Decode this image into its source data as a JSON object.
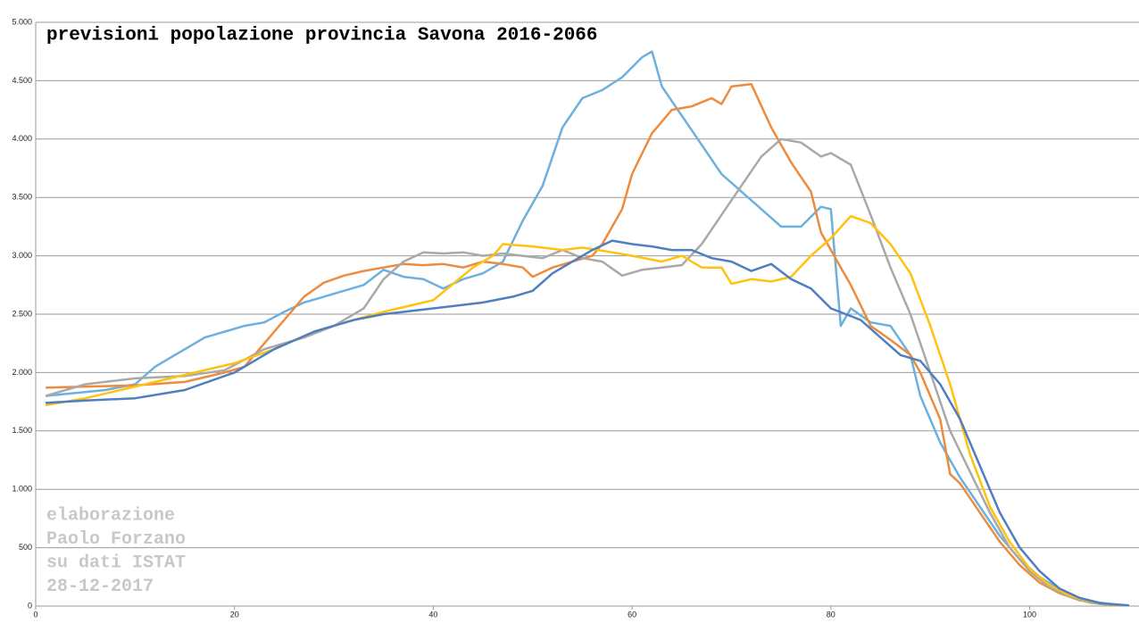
{
  "chart_data": {
    "type": "line",
    "title": "previsioni popolazione provincia Savona 2016-2066",
    "annotations": [
      "elaborazione",
      "Paolo Forzano",
      "su dati ISTAT",
      "28-12-2017"
    ],
    "xlim": [
      0,
      111
    ],
    "xticks": [
      0,
      20,
      40,
      60,
      80,
      100
    ],
    "ylim": [
      0,
      5000
    ],
    "yticks": [
      0,
      500,
      {
        "value": 1000,
        "label": "1.000"
      },
      {
        "value": 1500,
        "label": "1.500"
      },
      {
        "value": 2000,
        "label": "2.000"
      },
      {
        "value": 2500,
        "label": "2.500"
      },
      {
        "value": 3000,
        "label": "3.000"
      },
      {
        "value": 3500,
        "label": "3.500"
      },
      {
        "value": 4000,
        "label": "4.000"
      },
      {
        "value": 4500,
        "label": "4.500"
      },
      {
        "value": 5000,
        "label": "5.000"
      }
    ],
    "grid": true,
    "series": [
      {
        "color": "#6cb0de",
        "x": [
          1,
          7,
          10,
          12,
          14,
          17,
          19,
          21,
          23,
          25,
          27,
          29,
          31,
          33,
          35,
          37,
          39,
          41,
          43,
          45,
          47,
          49,
          51,
          53,
          55,
          57,
          59,
          61,
          62,
          63,
          65,
          67,
          69,
          71,
          73,
          75,
          77,
          79,
          80,
          81,
          82,
          84,
          86,
          88,
          89,
          91,
          93,
          95,
          97,
          99,
          101,
          103,
          105,
          107,
          109
        ],
        "values": [
          1800,
          1850,
          1900,
          2050,
          2150,
          2300,
          2350,
          2400,
          2430,
          2520,
          2600,
          2650,
          2700,
          2750,
          2880,
          2820,
          2800,
          2720,
          2800,
          2850,
          2950,
          3300,
          3600,
          4100,
          4350,
          4420,
          4530,
          4700,
          4750,
          4450,
          4200,
          3950,
          3700,
          3550,
          3400,
          3250,
          3250,
          3420,
          3400,
          2400,
          2550,
          2430,
          2400,
          2150,
          1800,
          1400,
          1100,
          850,
          600,
          400,
          250,
          140,
          70,
          30,
          10
        ]
      },
      {
        "color": "#ed8c3f",
        "x": [
          1,
          5,
          10,
          15,
          19,
          21,
          23,
          25,
          27,
          29,
          31,
          33,
          35,
          37,
          39,
          41,
          43,
          45,
          47,
          49,
          50,
          52,
          54,
          56,
          57,
          59,
          60,
          62,
          64,
          66,
          68,
          69,
          70,
          72,
          74,
          76,
          78,
          79,
          81,
          82,
          84,
          86,
          88,
          89,
          91,
          92,
          93,
          95,
          97,
          99,
          101,
          103,
          105,
          107,
          109
        ],
        "values": [
          1870,
          1880,
          1890,
          1920,
          2000,
          2050,
          2250,
          2450,
          2650,
          2770,
          2830,
          2870,
          2900,
          2930,
          2920,
          2930,
          2900,
          2950,
          2930,
          2900,
          2820,
          2900,
          2950,
          3000,
          3100,
          3400,
          3700,
          4050,
          4250,
          4280,
          4350,
          4300,
          4450,
          4470,
          4100,
          3800,
          3550,
          3200,
          2900,
          2750,
          2400,
          2280,
          2150,
          2000,
          1600,
          1130,
          1050,
          800,
          550,
          350,
          200,
          110,
          50,
          20,
          5
        ]
      },
      {
        "color": "#a9a9a9",
        "x": [
          1,
          5,
          10,
          15,
          19,
          23,
          27,
          30,
          33,
          35,
          37,
          39,
          41,
          43,
          45,
          47,
          49,
          51,
          53,
          55,
          57,
          59,
          61,
          63,
          65,
          67,
          69,
          71,
          73,
          75,
          77,
          79,
          80,
          82,
          84,
          86,
          88,
          90,
          92,
          94,
          96,
          98,
          100,
          102,
          104,
          106,
          108
        ],
        "values": [
          1800,
          1900,
          1950,
          1970,
          2020,
          2200,
          2300,
          2400,
          2550,
          2800,
          2950,
          3030,
          3020,
          3030,
          3000,
          3020,
          3000,
          2980,
          3050,
          2980,
          2950,
          2830,
          2880,
          2900,
          2920,
          3100,
          3350,
          3600,
          3850,
          4000,
          3970,
          3850,
          3880,
          3780,
          3350,
          2900,
          2500,
          2000,
          1500,
          1150,
          800,
          500,
          300,
          160,
          80,
          30,
          10
        ]
      },
      {
        "color": "#ffc20e",
        "x": [
          1,
          5,
          10,
          15,
          20,
          24,
          28,
          32,
          35,
          38,
          40,
          42,
          44,
          46,
          47,
          50,
          53,
          55,
          58,
          60,
          63,
          65,
          67,
          69,
          70,
          72,
          74,
          76,
          78,
          80,
          82,
          84,
          86,
          88,
          90,
          92,
          94,
          96,
          98,
          100,
          102,
          104,
          106,
          108
        ],
        "values": [
          1720,
          1780,
          1880,
          1980,
          2080,
          2200,
          2350,
          2450,
          2520,
          2580,
          2620,
          2760,
          2900,
          3000,
          3100,
          3080,
          3050,
          3070,
          3030,
          3000,
          2950,
          3000,
          2900,
          2900,
          2760,
          2800,
          2780,
          2820,
          3000,
          3150,
          3340,
          3280,
          3100,
          2850,
          2400,
          1900,
          1300,
          850,
          550,
          320,
          180,
          90,
          40,
          10
        ]
      },
      {
        "color": "#4f7fc0",
        "x": [
          1,
          5,
          10,
          15,
          20,
          24,
          28,
          32,
          35,
          40,
          45,
          48,
          50,
          52,
          54,
          56,
          58,
          60,
          62,
          64,
          66,
          68,
          70,
          72,
          74,
          76,
          78,
          80,
          83,
          85,
          87,
          89,
          91,
          93,
          95,
          97,
          99,
          101,
          103,
          105,
          107,
          110
        ],
        "values": [
          1740,
          1760,
          1780,
          1850,
          2000,
          2200,
          2350,
          2450,
          2500,
          2550,
          2600,
          2650,
          2700,
          2850,
          2950,
          3050,
          3130,
          3100,
          3080,
          3050,
          3050,
          2980,
          2950,
          2870,
          2930,
          2800,
          2720,
          2550,
          2450,
          2300,
          2150,
          2100,
          1900,
          1600,
          1200,
          800,
          500,
          300,
          150,
          70,
          25,
          5
        ]
      }
    ]
  }
}
